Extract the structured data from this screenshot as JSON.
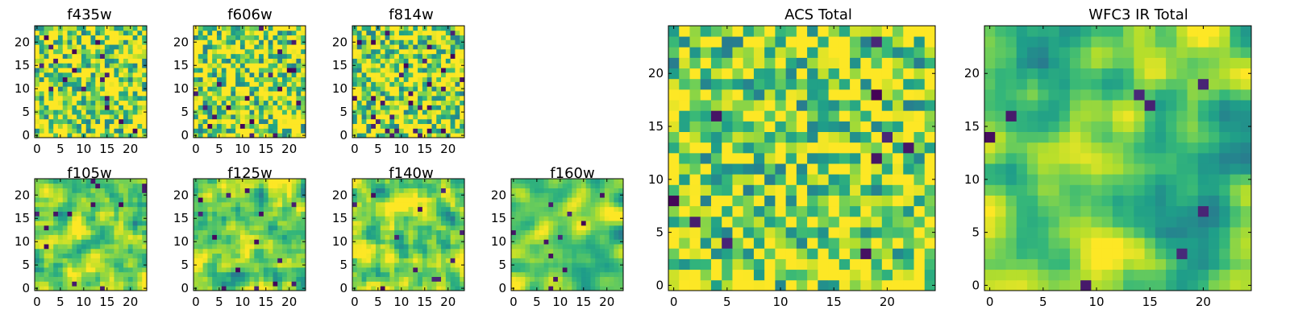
{
  "chart_data": [
    {
      "id": "p1",
      "type": "heatmap",
      "title": "f435w",
      "grid": [
        24,
        24
      ],
      "xticks": [
        0,
        5,
        10,
        15,
        20
      ],
      "yticks": [
        0,
        5,
        10,
        15,
        20
      ],
      "seed": 435,
      "smooth": 0,
      "hot": 0.35,
      "dark_count": 16
    },
    {
      "id": "p2",
      "type": "heatmap",
      "title": "f606w",
      "grid": [
        24,
        24
      ],
      "xticks": [
        0,
        5,
        10,
        15,
        20
      ],
      "yticks": [
        0,
        5,
        10,
        15,
        20
      ],
      "seed": 606,
      "smooth": 0,
      "hot": 0.35,
      "dark_count": 14
    },
    {
      "id": "p3",
      "type": "heatmap",
      "title": "f814w",
      "grid": [
        24,
        24
      ],
      "xticks": [
        0,
        5,
        10,
        15,
        20
      ],
      "yticks": [
        0,
        5,
        10,
        15,
        20
      ],
      "seed": 814,
      "smooth": 0,
      "hot": 0.3,
      "dark_count": 20
    },
    {
      "id": "p4",
      "type": "heatmap",
      "title": "f105w",
      "grid": [
        24,
        24
      ],
      "xticks": [
        0,
        5,
        10,
        15,
        20
      ],
      "yticks": [
        0,
        5,
        10,
        15,
        20
      ],
      "seed": 105,
      "smooth": 1,
      "hot": 0.15,
      "dark_count": 8
    },
    {
      "id": "p5",
      "type": "heatmap",
      "title": "f125w",
      "grid": [
        24,
        24
      ],
      "xticks": [
        0,
        5,
        10,
        15,
        20
      ],
      "yticks": [
        0,
        5,
        10,
        15,
        20
      ],
      "seed": 125,
      "smooth": 1,
      "hot": 0.12,
      "dark_count": 10
    },
    {
      "id": "p6",
      "type": "heatmap",
      "title": "f140w",
      "grid": [
        24,
        24
      ],
      "xticks": [
        0,
        5,
        10,
        15,
        20
      ],
      "yticks": [
        0,
        5,
        10,
        15,
        20
      ],
      "seed": 140,
      "smooth": 1,
      "hot": 0.18,
      "dark_count": 6
    },
    {
      "id": "p7",
      "type": "heatmap",
      "title": "f160w",
      "grid": [
        24,
        24
      ],
      "xticks": [
        0,
        5,
        10,
        15,
        20
      ],
      "yticks": [
        0,
        5,
        10,
        15,
        20
      ],
      "seed": 160,
      "smooth": 2,
      "hot": 0.1,
      "dark_count": 6
    },
    {
      "id": "p8",
      "type": "heatmap",
      "title": "ACS Total",
      "grid": [
        25,
        25
      ],
      "xticks": [
        0,
        5,
        10,
        15,
        20
      ],
      "yticks": [
        0,
        5,
        10,
        15,
        20
      ],
      "seed": 999,
      "smooth": 0,
      "hot": 0.22,
      "dark_count": 14
    },
    {
      "id": "p9",
      "type": "heatmap",
      "title": "WFC3 IR Total",
      "grid": [
        25,
        25
      ],
      "xticks": [
        0,
        5,
        10,
        15,
        20
      ],
      "yticks": [
        0,
        5,
        10,
        15,
        20
      ],
      "seed": 777,
      "smooth": 2,
      "hot": 0.1,
      "dark_count": 8
    }
  ]
}
